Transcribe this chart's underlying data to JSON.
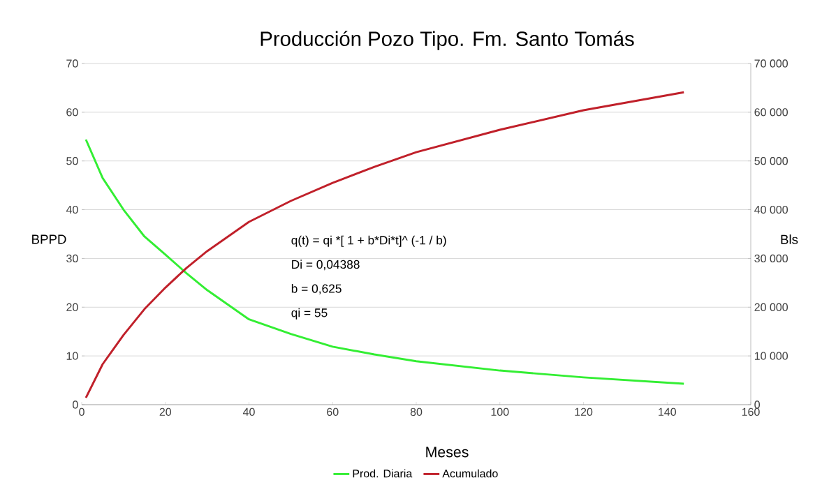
{
  "chart_data": {
    "type": "line",
    "title": "Producción Pozo Tipo. Fm. Santo Tomás",
    "xlabel": "Meses",
    "ylabel": "BPPD",
    "y2label": "Bls",
    "annotations": [
      "q(t) = qi *[ 1 + b*Di*t]^ (-1 / b)",
      "Di = 0,04388",
      "b = 0,625",
      "qi = 55"
    ],
    "series": [
      {
        "name": "Prod. Diaria",
        "color": "#33ee33",
        "x": [
          1,
          5,
          10,
          15,
          20,
          25,
          30,
          40,
          50,
          60,
          70,
          80,
          100,
          120,
          144
        ],
        "values": [
          54.4,
          46.5,
          40,
          34.5,
          30.8,
          27,
          23.5,
          17.5,
          14.5,
          11.9,
          10.3,
          8.9,
          7.0,
          5.6,
          4.3
        ]
      },
      {
        "name": "Acumulado",
        "color": "#c0202a",
        "axis": "y2",
        "x": [
          1,
          5,
          10,
          15,
          20,
          25,
          30,
          40,
          50,
          60,
          70,
          80,
          100,
          120,
          144
        ],
        "values": [
          1400,
          8300,
          14300,
          19600,
          24000,
          28000,
          31500,
          37500,
          41800,
          45500,
          48800,
          51800,
          56400,
          60400,
          64100
        ]
      }
    ],
    "xlim": [
      0,
      160
    ],
    "xticks": [
      0,
      20,
      40,
      60,
      80,
      100,
      120,
      140,
      160
    ],
    "ylim": [
      0,
      70
    ],
    "yticks": [
      0,
      10,
      20,
      30,
      40,
      50,
      60,
      70
    ],
    "y2lim": [
      0,
      70000
    ],
    "y2ticks": [
      0,
      {
        "value": 10000,
        "label": "10 000"
      },
      {
        "value": 20000,
        "label": "20 000"
      },
      {
        "value": 30000,
        "label": "30 000"
      },
      {
        "value": 40000,
        "label": "40 000"
      },
      {
        "value": 50000,
        "label": "50 000"
      },
      {
        "value": 60000,
        "label": "60 000"
      },
      {
        "value": 70000,
        "label": "70 000"
      }
    ],
    "grid": "y",
    "legend": "bottom",
    "marker": "none",
    "line_style": "solid"
  }
}
